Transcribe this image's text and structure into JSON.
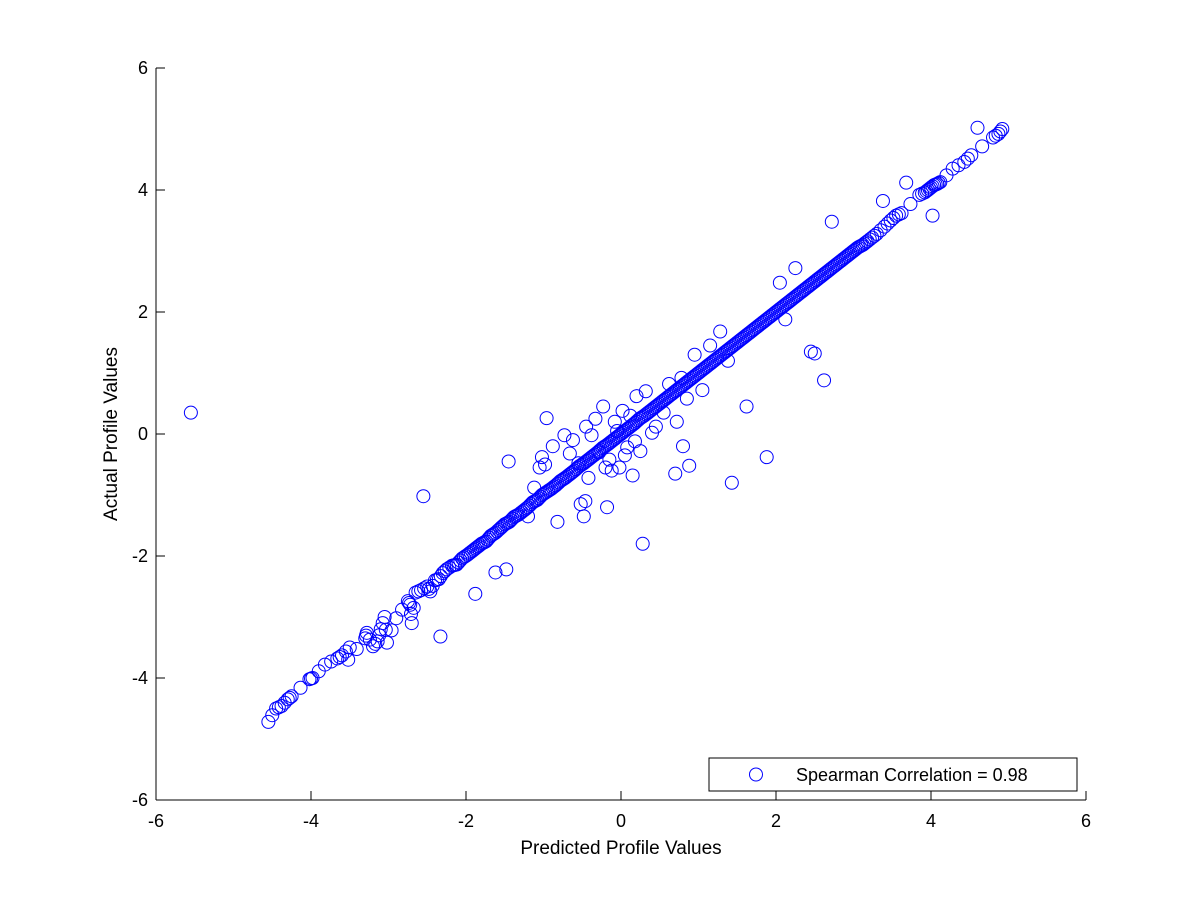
{
  "chart_data": {
    "type": "scatter",
    "xlabel": "Predicted Profile Values",
    "ylabel": "Actual Profile Values",
    "xlim": [
      -6,
      6
    ],
    "ylim": [
      -6,
      6
    ],
    "xticks": [
      "-6",
      "-4",
      "-2",
      "0",
      "2",
      "4",
      "6"
    ],
    "yticks": [
      "-6",
      "-4",
      "-2",
      "0",
      "2",
      "4",
      "6"
    ],
    "grid": false,
    "legend_position": "bottom-right",
    "marker": "open-circle",
    "colors": {
      "series": "#0000ff",
      "axes": "#000000",
      "background": "#ffffff"
    },
    "series": [
      {
        "name": "Spearman Correlation = 0.98",
        "trend_points": [
          [
            -4.55,
            -4.72
          ],
          [
            -4.45,
            -4.5
          ],
          [
            -4.38,
            -4.46
          ],
          [
            -4.3,
            -4.35
          ],
          [
            -4.25,
            -4.3
          ],
          [
            -4.02,
            -4.02
          ],
          [
            -3.98,
            -4.0
          ],
          [
            -3.82,
            -3.78
          ],
          [
            -3.66,
            -3.68
          ],
          [
            -3.6,
            -3.63
          ],
          [
            -3.5,
            -3.5
          ],
          [
            -3.52,
            -3.7
          ],
          [
            -3.3,
            -3.35
          ],
          [
            -3.28,
            -3.26
          ],
          [
            -3.2,
            -3.48
          ],
          [
            -3.14,
            -3.4
          ],
          [
            -3.1,
            -3.2
          ],
          [
            -3.05,
            -3.0
          ],
          [
            -3.02,
            -3.42
          ],
          [
            -2.9,
            -3.02
          ],
          [
            -2.75,
            -2.74
          ],
          [
            -2.72,
            -2.8
          ],
          [
            -2.7,
            -3.1
          ],
          [
            -2.65,
            -2.6
          ],
          [
            -2.58,
            -2.56
          ],
          [
            -2.5,
            -2.5
          ],
          [
            -2.46,
            -2.58
          ],
          [
            -2.4,
            -2.4
          ],
          [
            -2.35,
            -2.38
          ],
          [
            -2.3,
            -2.28
          ],
          [
            -2.25,
            -2.22
          ],
          [
            -2.18,
            -2.16
          ],
          [
            -2.12,
            -2.14
          ],
          [
            -2.05,
            -2.04
          ],
          [
            -1.98,
            -1.98
          ],
          [
            -1.92,
            -1.92
          ],
          [
            -1.86,
            -1.86
          ],
          [
            -1.8,
            -1.8
          ],
          [
            -1.74,
            -1.76
          ],
          [
            -1.68,
            -1.67
          ],
          [
            -1.62,
            -1.62
          ],
          [
            -1.56,
            -1.55
          ],
          [
            -1.5,
            -1.48
          ],
          [
            -1.44,
            -1.44
          ],
          [
            -1.38,
            -1.36
          ],
          [
            -1.32,
            -1.32
          ],
          [
            -1.26,
            -1.26
          ],
          [
            -1.2,
            -1.2
          ],
          [
            -1.14,
            -1.12
          ],
          [
            -1.08,
            -1.08
          ],
          [
            -1.02,
            -1.0
          ],
          [
            -0.96,
            -0.95
          ],
          [
            -0.9,
            -0.9
          ],
          [
            -0.84,
            -0.84
          ],
          [
            -0.78,
            -0.77
          ],
          [
            -0.72,
            -0.72
          ],
          [
            -0.66,
            -0.66
          ],
          [
            -0.6,
            -0.6
          ],
          [
            -0.54,
            -0.53
          ],
          [
            -0.48,
            -0.48
          ],
          [
            -0.42,
            -0.42
          ],
          [
            -0.36,
            -0.36
          ],
          [
            -0.3,
            -0.3
          ],
          [
            -0.24,
            -0.23
          ],
          [
            -0.18,
            -0.18
          ],
          [
            -0.12,
            -0.12
          ],
          [
            -0.06,
            -0.06
          ],
          [
            0.0,
            0.0
          ],
          [
            0.06,
            0.06
          ],
          [
            0.12,
            0.12
          ],
          [
            0.18,
            0.18
          ],
          [
            0.24,
            0.25
          ],
          [
            0.3,
            0.3
          ],
          [
            0.36,
            0.36
          ],
          [
            0.42,
            0.42
          ],
          [
            0.48,
            0.48
          ],
          [
            0.54,
            0.54
          ],
          [
            0.6,
            0.6
          ],
          [
            0.66,
            0.66
          ],
          [
            0.72,
            0.72
          ],
          [
            0.78,
            0.78
          ],
          [
            0.84,
            0.84
          ],
          [
            0.9,
            0.9
          ],
          [
            0.96,
            0.96
          ],
          [
            1.02,
            1.02
          ],
          [
            1.08,
            1.08
          ],
          [
            1.14,
            1.14
          ],
          [
            1.2,
            1.2
          ],
          [
            1.26,
            1.26
          ],
          [
            1.32,
            1.32
          ],
          [
            1.38,
            1.38
          ],
          [
            1.44,
            1.44
          ],
          [
            1.5,
            1.5
          ],
          [
            1.56,
            1.56
          ],
          [
            1.62,
            1.62
          ],
          [
            1.68,
            1.68
          ],
          [
            1.74,
            1.74
          ],
          [
            1.8,
            1.8
          ],
          [
            1.86,
            1.86
          ],
          [
            1.92,
            1.92
          ],
          [
            1.98,
            1.98
          ],
          [
            2.04,
            2.04
          ],
          [
            2.1,
            2.1
          ],
          [
            2.16,
            2.16
          ],
          [
            2.22,
            2.22
          ],
          [
            2.28,
            2.28
          ],
          [
            2.34,
            2.34
          ],
          [
            2.4,
            2.4
          ],
          [
            2.46,
            2.46
          ],
          [
            2.52,
            2.52
          ],
          [
            2.58,
            2.58
          ],
          [
            2.64,
            2.64
          ],
          [
            2.7,
            2.7
          ],
          [
            2.76,
            2.76
          ],
          [
            2.82,
            2.82
          ],
          [
            2.88,
            2.88
          ],
          [
            2.94,
            2.94
          ],
          [
            3.0,
            3.0
          ],
          [
            3.06,
            3.06
          ],
          [
            3.12,
            3.1
          ],
          [
            3.18,
            3.16
          ],
          [
            3.24,
            3.22
          ],
          [
            3.3,
            3.28
          ],
          [
            3.4,
            3.4
          ],
          [
            3.48,
            3.5
          ],
          [
            3.55,
            3.58
          ],
          [
            3.62,
            3.62
          ],
          [
            3.85,
            3.92
          ],
          [
            3.92,
            3.96
          ],
          [
            3.96,
            4.0
          ],
          [
            4.0,
            4.04
          ],
          [
            4.04,
            4.08
          ],
          [
            4.08,
            4.1
          ],
          [
            4.12,
            4.13
          ],
          [
            4.28,
            4.35
          ],
          [
            4.43,
            4.46
          ],
          [
            4.52,
            4.57
          ],
          [
            4.8,
            4.86
          ],
          [
            4.87,
            4.92
          ],
          [
            4.92,
            5.0
          ]
        ],
        "outliers": [
          [
            -5.55,
            0.35
          ],
          [
            -2.55,
            -1.02
          ],
          [
            -2.33,
            -3.32
          ],
          [
            -1.88,
            -2.62
          ],
          [
            -1.62,
            -2.27
          ],
          [
            -1.48,
            -2.22
          ],
          [
            -1.45,
            -0.45
          ],
          [
            -1.2,
            -1.35
          ],
          [
            -1.12,
            -0.88
          ],
          [
            -1.05,
            -0.55
          ],
          [
            -1.02,
            -0.38
          ],
          [
            -0.98,
            -0.5
          ],
          [
            -0.96,
            0.26
          ],
          [
            -0.88,
            -0.2
          ],
          [
            -0.82,
            -1.44
          ],
          [
            -0.73,
            -0.02
          ],
          [
            -0.66,
            -0.32
          ],
          [
            -0.62,
            -0.1
          ],
          [
            -0.55,
            -0.48
          ],
          [
            -0.52,
            -1.15
          ],
          [
            -0.48,
            -1.35
          ],
          [
            -0.46,
            -1.1
          ],
          [
            -0.45,
            0.12
          ],
          [
            -0.42,
            -0.72
          ],
          [
            -0.38,
            -0.02
          ],
          [
            -0.33,
            0.25
          ],
          [
            -0.28,
            -0.3
          ],
          [
            -0.23,
            0.45
          ],
          [
            -0.2,
            -0.55
          ],
          [
            -0.18,
            -1.2
          ],
          [
            -0.15,
            -0.42
          ],
          [
            -0.12,
            -0.6
          ],
          [
            -0.08,
            0.2
          ],
          [
            -0.05,
            0.05
          ],
          [
            -0.02,
            -0.55
          ],
          [
            0.02,
            0.38
          ],
          [
            0.05,
            -0.35
          ],
          [
            0.08,
            -0.22
          ],
          [
            0.12,
            0.3
          ],
          [
            0.15,
            -0.68
          ],
          [
            0.18,
            -0.12
          ],
          [
            0.2,
            0.62
          ],
          [
            0.25,
            -0.28
          ],
          [
            0.28,
            -1.8
          ],
          [
            0.32,
            0.7
          ],
          [
            0.4,
            0.02
          ],
          [
            0.45,
            0.12
          ],
          [
            0.55,
            0.35
          ],
          [
            0.62,
            0.82
          ],
          [
            0.7,
            -0.65
          ],
          [
            0.72,
            0.2
          ],
          [
            0.78,
            0.92
          ],
          [
            0.8,
            -0.2
          ],
          [
            0.85,
            0.58
          ],
          [
            0.88,
            -0.52
          ],
          [
            0.95,
            1.3
          ],
          [
            1.05,
            0.72
          ],
          [
            1.15,
            1.45
          ],
          [
            1.28,
            1.68
          ],
          [
            1.38,
            1.2
          ],
          [
            1.43,
            -0.8
          ],
          [
            1.62,
            0.45
          ],
          [
            1.88,
            -0.38
          ],
          [
            2.05,
            2.48
          ],
          [
            2.12,
            1.88
          ],
          [
            2.25,
            2.72
          ],
          [
            2.45,
            1.35
          ],
          [
            2.5,
            1.32
          ],
          [
            2.62,
            0.88
          ],
          [
            2.72,
            3.48
          ],
          [
            3.38,
            3.82
          ],
          [
            3.68,
            4.12
          ],
          [
            4.02,
            3.58
          ],
          [
            4.6,
            5.02
          ]
        ]
      }
    ]
  }
}
